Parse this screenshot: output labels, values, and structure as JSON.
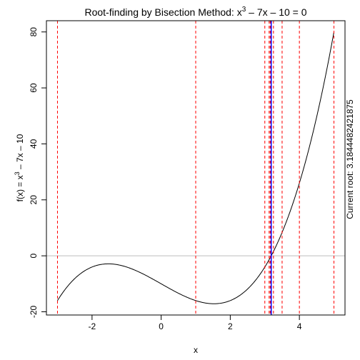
{
  "chart_data": {
    "type": "line",
    "title": {
      "prefix": "Root-finding by Bisection Method: x",
      "sup": "3",
      "suffix": " – 7x – 10 = 0"
    },
    "xlabel": "x",
    "ylabel": {
      "prefix": "f(x) = x",
      "sup": "3",
      "suffix": " – 7x – 10"
    },
    "right_label": "Current root: 3.184448242187 5",
    "right_label_text": "Current root: 3.1844482421875",
    "xlim": [
      -3.32,
      5.32
    ],
    "ylim": [
      -21.15,
      84.01
    ],
    "x_ticks": [
      -2,
      0,
      2,
      4
    ],
    "y_ticks": [
      -20,
      0,
      20,
      40,
      60,
      80
    ],
    "grid": false,
    "function": "x^3 - 7x - 10",
    "curve_domain": [
      -3,
      5
    ],
    "zero_line": {
      "y": 0,
      "color": "#bebebe"
    },
    "bisection_lines": [
      -3,
      1,
      3,
      4,
      5,
      3.5,
      3.25,
      3.125,
      3.1875,
      3.15625,
      3.171875,
      3.1796875,
      3.18359375,
      3.185546875,
      3.1845703125
    ],
    "bisection_color": "#ff0000",
    "root": 3.1844482421875,
    "root_color": "#0000ff",
    "curve_color": "#000000"
  }
}
